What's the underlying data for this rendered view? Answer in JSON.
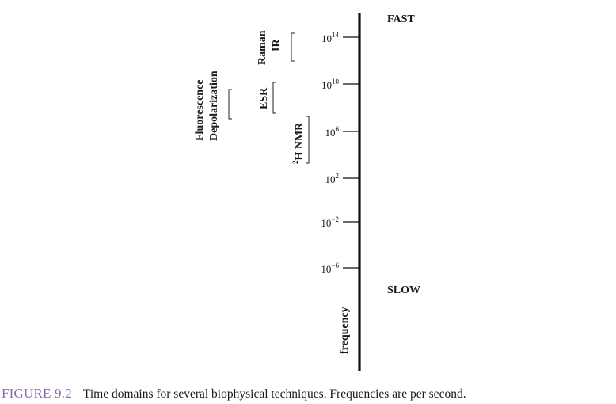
{
  "figure": {
    "fast_label": "FAST",
    "slow_label": "SLOW",
    "axis_label": "frequency",
    "ticks": [
      {
        "base": "10",
        "exponent": "14"
      },
      {
        "base": "10",
        "exponent": "10"
      },
      {
        "base": "10",
        "exponent": "6"
      },
      {
        "base": "10",
        "exponent": "2"
      },
      {
        "base": "10",
        "exponent": "−2"
      },
      {
        "base": "10",
        "exponent": "−6"
      }
    ],
    "techniques": {
      "fluorescence": {
        "line1": "Fluorescence",
        "line2": "Depolarization"
      },
      "esr": {
        "label": "ESR"
      },
      "raman_ir": {
        "line1": "Raman",
        "line2": "IR"
      },
      "nmr": {
        "superscript": "2",
        "label": "H NMR"
      }
    }
  },
  "caption": {
    "label": "FIGURE 9.2",
    "text": "Time domains for several biophysical techniques. Frequencies are per second."
  }
}
